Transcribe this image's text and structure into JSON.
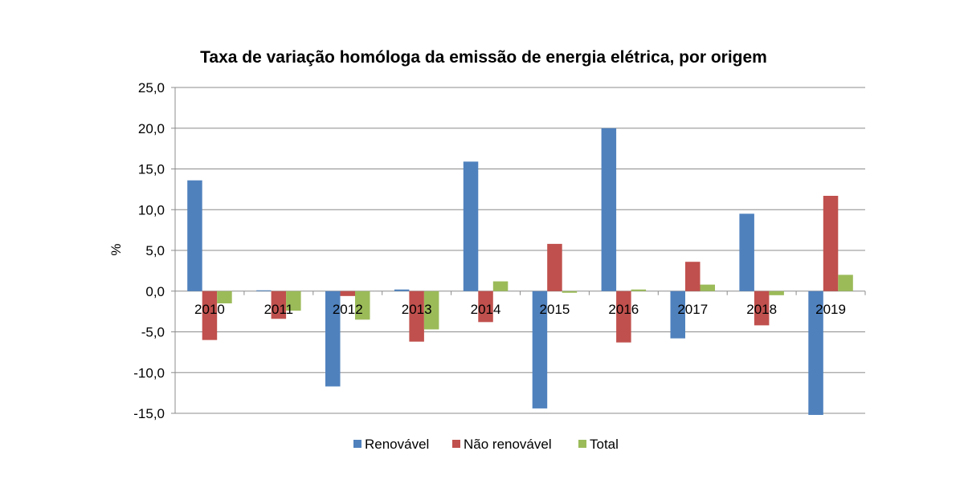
{
  "chart_data": {
    "type": "bar",
    "title": "Taxa de variação homóloga da emissão de energia elétrica, por origem",
    "xlabel": "",
    "ylabel": "%",
    "ylim": [
      -15,
      25
    ],
    "yticks": [
      25,
      20,
      15,
      10,
      5,
      0,
      -5,
      -10,
      -15
    ],
    "ytick_labels": [
      "25,0",
      "20,0",
      "15,0",
      "10,0",
      "5,0",
      "0,0",
      "-5,0",
      "-10,0",
      "-15,0"
    ],
    "grid": true,
    "legend_position": "bottom",
    "categories": [
      "2010",
      "2011",
      "2012",
      "2013",
      "2014",
      "2015",
      "2016",
      "2017",
      "2018",
      "2019"
    ],
    "series": [
      {
        "name": "Renovável",
        "color": "#4F81BD",
        "values": [
          13.6,
          0.1,
          -11.7,
          0.2,
          15.9,
          -14.4,
          20.0,
          -5.8,
          9.5,
          -15.2
        ]
      },
      {
        "name": "Não renovável",
        "color": "#C0504D",
        "values": [
          -6.0,
          -3.4,
          -0.6,
          -6.2,
          -3.8,
          5.8,
          -6.3,
          3.6,
          -4.2,
          11.7
        ]
      },
      {
        "name": "Total",
        "color": "#9BBB59",
        "values": [
          -1.5,
          -2.4,
          -3.5,
          -4.7,
          1.2,
          -0.2,
          0.2,
          0.8,
          -0.5,
          2.0
        ]
      }
    ]
  }
}
